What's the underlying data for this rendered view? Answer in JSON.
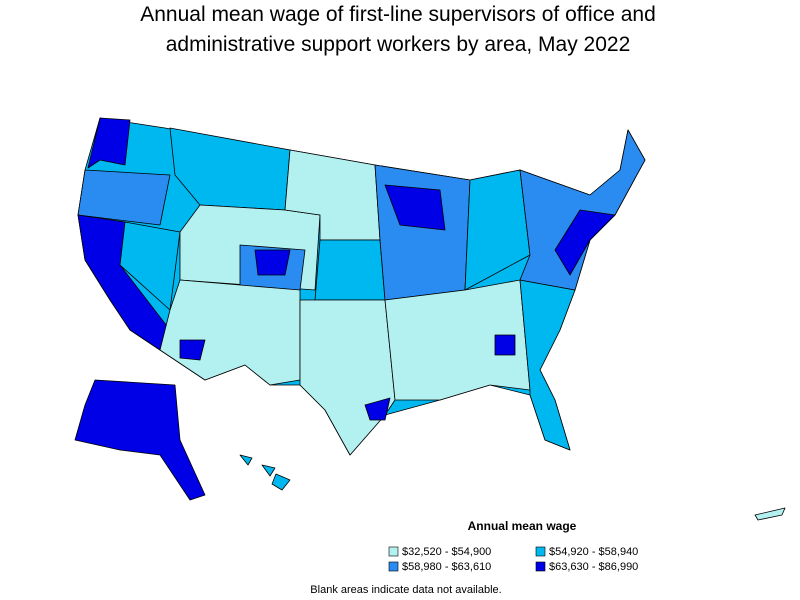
{
  "header": {
    "title_lines": [
      "Annual mean wage of first-line supervisors of office and",
      "administrative support workers by area, May 2022"
    ]
  },
  "legend": {
    "title": "Annual mean wage",
    "items": [
      {
        "label": "$32,520 - $54,900",
        "color": "#b3f0f0"
      },
      {
        "label": "$54,920 - $58,940",
        "color": "#00b8f0"
      },
      {
        "label": "$58,980 - $63,610",
        "color": "#2a8cf0"
      },
      {
        "label": "$63,630 - $86,990",
        "color": "#0000e6"
      }
    ]
  },
  "note": "Blank areas indicate data not available."
}
